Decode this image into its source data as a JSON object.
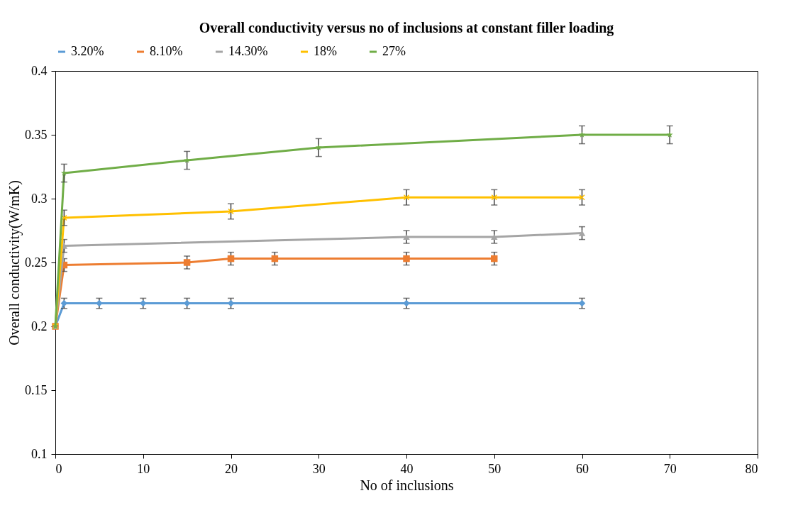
{
  "chart_data": {
    "type": "line",
    "title": "Overall conductivity versus no of inclusions at constant filler loading",
    "xlabel": "No of inclusions",
    "ylabel": "Overall conductivity(W/mK)",
    "xlim": [
      0,
      80
    ],
    "xticks": [
      0,
      10,
      20,
      30,
      40,
      50,
      60,
      70,
      80
    ],
    "ylim": [
      0.1,
      0.4
    ],
    "yticks": [
      0.1,
      0.15,
      0.2,
      0.25,
      0.3,
      0.35,
      0.4
    ],
    "grid": false,
    "legend": "top",
    "series": [
      {
        "name": "3.20%",
        "color": "#5b9bd5",
        "marker": "diamond",
        "x": [
          0,
          1,
          5,
          10,
          15,
          20,
          40,
          60
        ],
        "values": [
          0.2,
          0.218,
          0.218,
          0.218,
          0.218,
          0.218,
          0.218,
          0.218
        ],
        "errors": [
          null,
          0.004,
          0.004,
          0.004,
          0.004,
          0.004,
          0.004,
          0.004
        ]
      },
      {
        "name": "8.10%",
        "color": "#ed7d31",
        "marker": "square",
        "x": [
          0,
          1,
          15,
          20,
          25,
          40,
          50
        ],
        "values": [
          0.2,
          0.248,
          0.25,
          0.253,
          0.253,
          0.253,
          0.253
        ],
        "errors": [
          null,
          0.005,
          0.005,
          0.005,
          0.005,
          0.005,
          0.005
        ]
      },
      {
        "name": "14.30%",
        "color": "#a5a5a5",
        "marker": "triangle",
        "x": [
          0,
          1,
          40,
          50,
          60
        ],
        "values": [
          0.2,
          0.263,
          0.27,
          0.27,
          0.273
        ],
        "errors": [
          null,
          0.005,
          0.005,
          0.005,
          0.005
        ]
      },
      {
        "name": "18%",
        "color": "#ffc000",
        "marker": "cross",
        "x": [
          0,
          1,
          20,
          40,
          50,
          60
        ],
        "values": [
          0.2,
          0.285,
          0.29,
          0.301,
          0.301,
          0.301
        ],
        "errors": [
          null,
          0.006,
          0.006,
          0.006,
          0.006,
          0.006
        ]
      },
      {
        "name": "27%",
        "color": "#70ad47",
        "marker": "star",
        "x": [
          0,
          1,
          15,
          30,
          60,
          70
        ],
        "values": [
          0.2,
          0.32,
          0.33,
          0.34,
          0.35,
          0.35
        ],
        "errors": [
          null,
          0.007,
          0.007,
          0.007,
          0.007,
          0.007
        ]
      }
    ]
  }
}
